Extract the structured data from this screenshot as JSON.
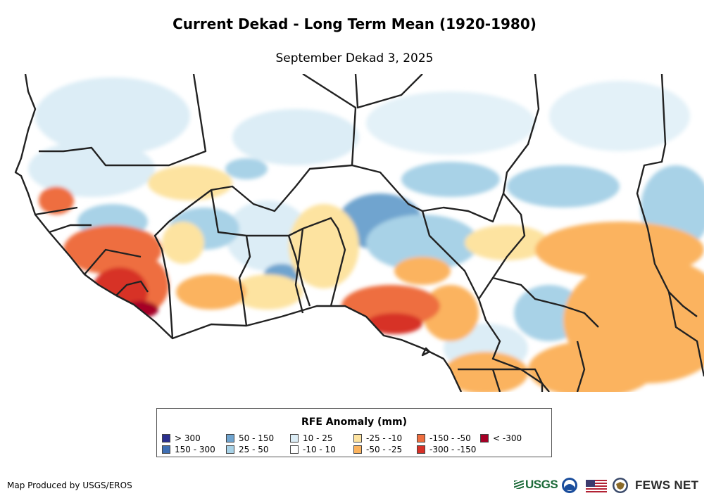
{
  "title": "Current Dekad - Long Term Mean (1920-1980)",
  "subtitle": "September Dekad 3, 2025",
  "legend": {
    "title": "RFE Anomaly (mm)",
    "items": [
      {
        "label": "> 300",
        "color": "#2b2f8e"
      },
      {
        "label": "150 - 300",
        "color": "#3f6fb4"
      },
      {
        "label": "50 - 150",
        "color": "#6fa4cf"
      },
      {
        "label": "25 - 50",
        "color": "#a8d2e7"
      },
      {
        "label": "10 - 25",
        "color": "#dcedf6"
      },
      {
        "label": "-10 - 10",
        "color": "#ffffff"
      },
      {
        "label": "-25 - -10",
        "color": "#fde3a0"
      },
      {
        "label": "-50 - -25",
        "color": "#fbb35e"
      },
      {
        "label": "-150 - -50",
        "color": "#ee6e3f"
      },
      {
        "label": "-300 - -150",
        "color": "#d73027"
      },
      {
        "label": "< -300",
        "color": "#a50026"
      }
    ]
  },
  "credit": "Map Produced by USGS/EROS",
  "logos": {
    "usgs": "USGS",
    "fews": "FEWS NET"
  }
}
